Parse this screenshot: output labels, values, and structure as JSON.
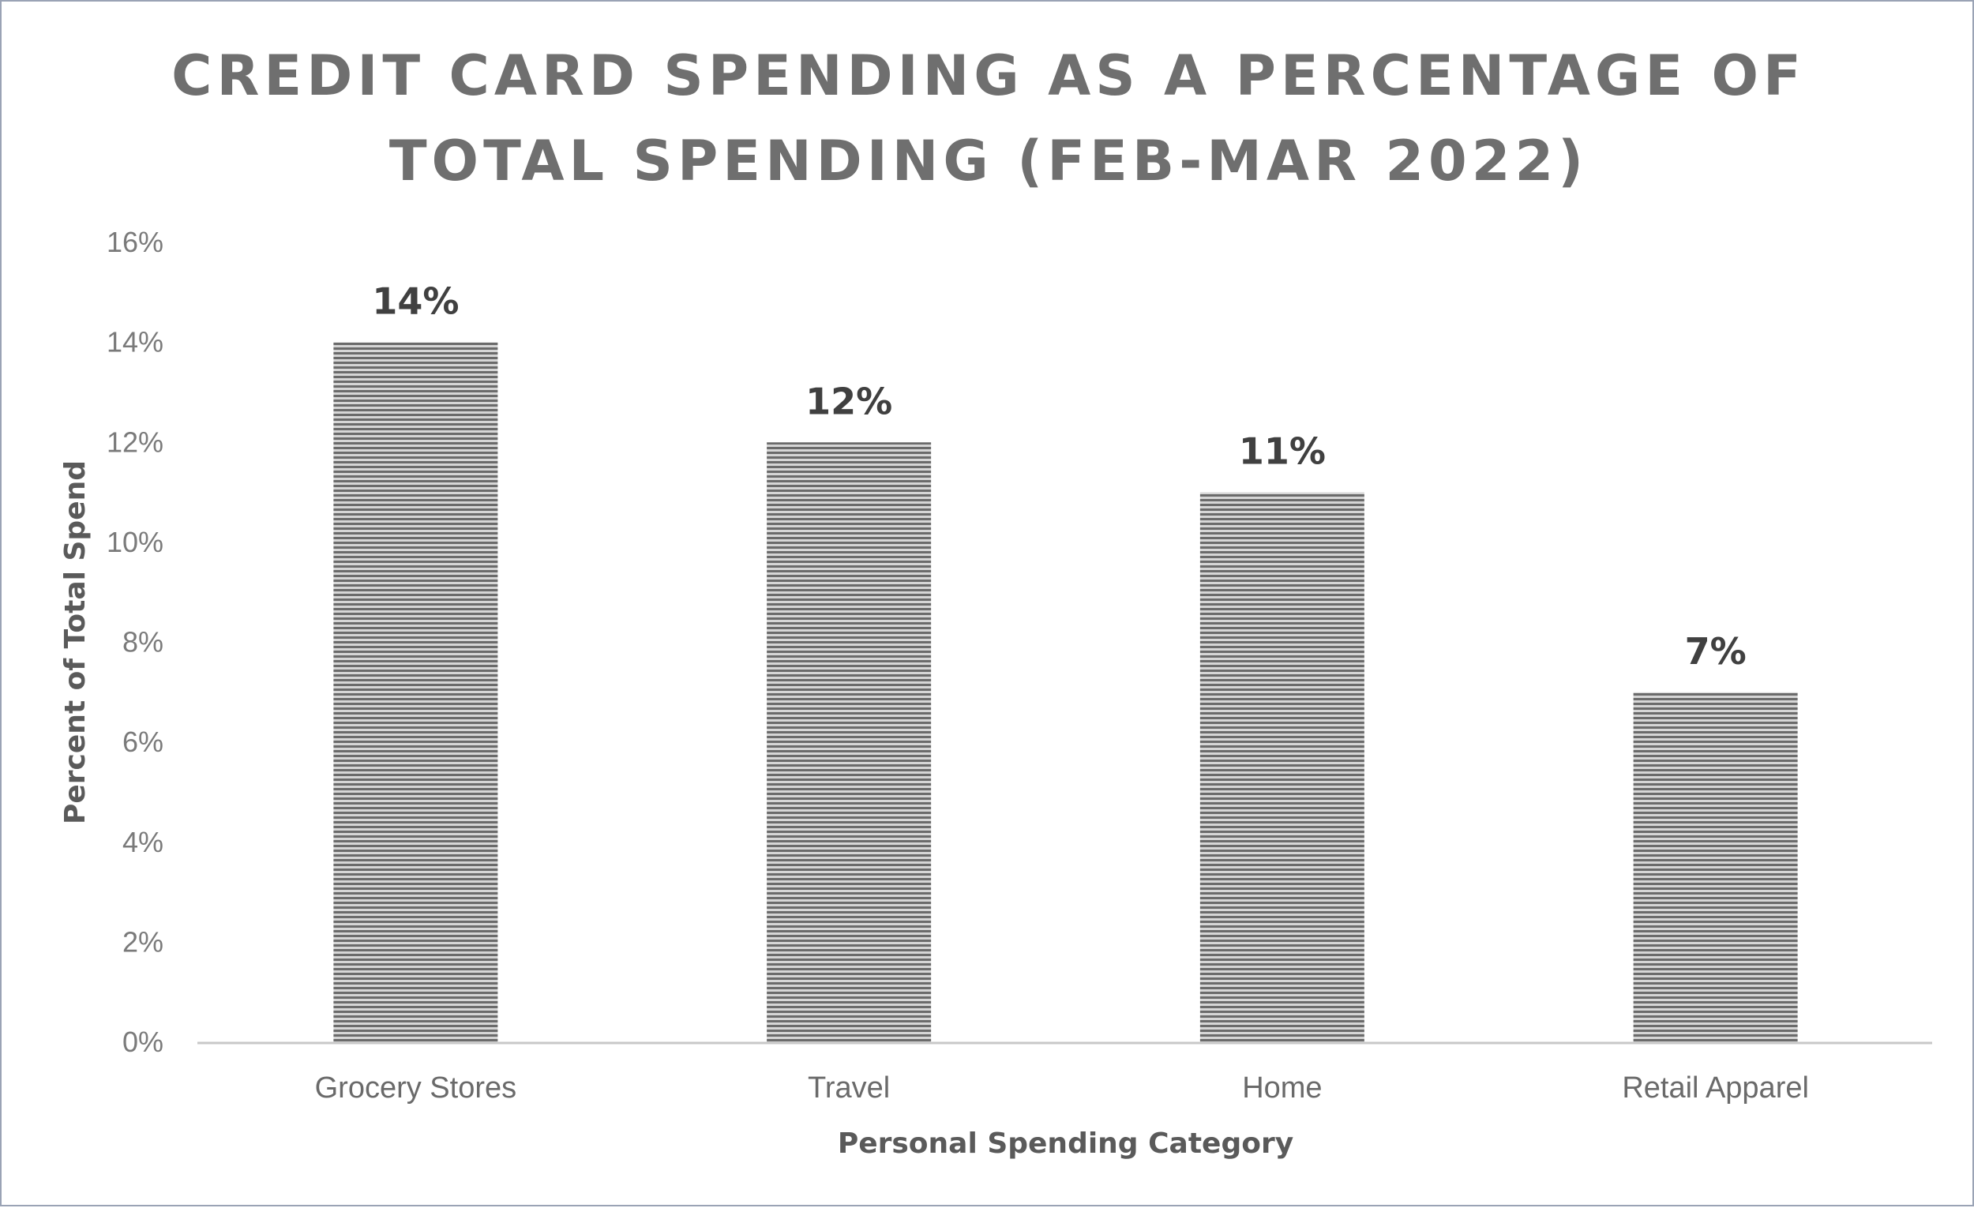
{
  "chart_data": {
    "type": "bar",
    "title_line1": "CREDIT CARD SPENDING AS A PERCENTAGE OF",
    "title_line2": "TOTAL SPENDING (FEB-MAR 2022)",
    "xlabel": "Personal Spending Category",
    "ylabel": "Percent of Total Spend",
    "categories": [
      "Grocery Stores",
      "Travel",
      "Home",
      "Retail Apparel"
    ],
    "values": [
      14,
      12,
      11,
      7
    ],
    "data_labels": [
      "14%",
      "12%",
      "11%",
      "7%"
    ],
    "ylim": [
      0,
      16
    ],
    "yticks": [
      "0%",
      "2%",
      "4%",
      "6%",
      "8%",
      "10%",
      "12%",
      "14%",
      "16%"
    ],
    "grid": false,
    "legend": "none",
    "bar_fill": "horizontal-stripe gray"
  },
  "colors": {
    "title": "#6f6f6f",
    "bar_dark": "#6b6b6b",
    "bar_light": "#d6d6d6",
    "axis": "#c8c8c8"
  }
}
